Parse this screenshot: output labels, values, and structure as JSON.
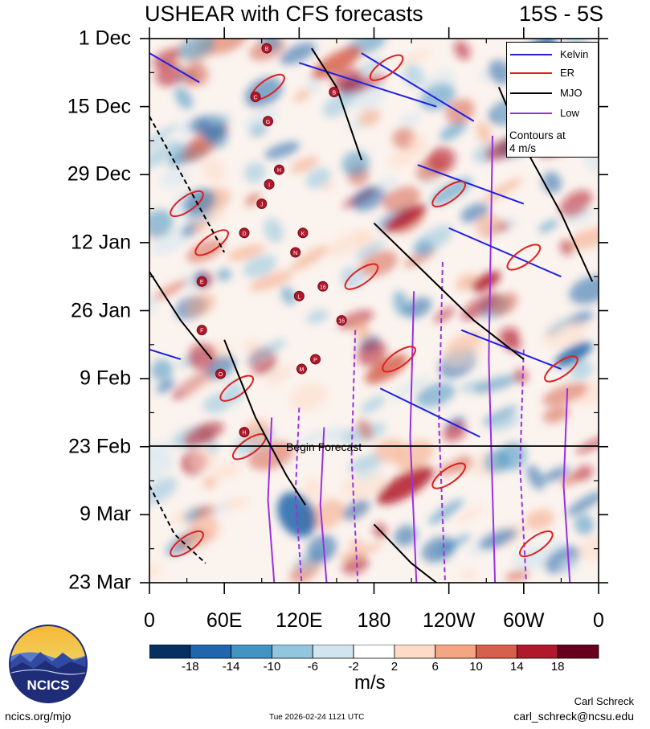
{
  "title": "USHEAR with CFS forecasts",
  "latitude_band": "15S - 5S",
  "chart_data": {
    "type": "heatmap",
    "title": "USHEAR with CFS forecasts",
    "subtitle": "15S - 5S",
    "xlabel": "",
    "ylabel": "",
    "x_ticks": [
      "0",
      "60E",
      "120E",
      "180",
      "120W",
      "60W",
      "0"
    ],
    "x_tick_values": [
      0,
      60,
      120,
      180,
      240,
      300,
      360
    ],
    "y_ticks": [
      "1 Dec",
      "15 Dec",
      "29 Dec",
      "12 Jan",
      "26 Jan",
      "9 Feb",
      "23 Feb",
      "9 Mar",
      "23 Mar"
    ],
    "y_tick_values": [
      0,
      14,
      28,
      42,
      56,
      70,
      84,
      98,
      112
    ],
    "xlim": [
      0,
      360
    ],
    "ylim_days": [
      0,
      112
    ],
    "colorbar": {
      "units": "m/s",
      "labels": [
        "-18",
        "-14",
        "-10",
        "-6",
        "-2",
        "2",
        "6",
        "10",
        "14",
        "18"
      ],
      "levels": [
        -18,
        -14,
        -10,
        -6,
        -2,
        2,
        6,
        10,
        14,
        18
      ],
      "colors": [
        "#053061",
        "#2166ac",
        "#4393c3",
        "#92c5de",
        "#d1e5f0",
        "#ffffff",
        "#fddbc7",
        "#f4a582",
        "#d6604d",
        "#b2182b",
        "#67001f"
      ]
    },
    "forecast_start_label": "Begin Forecast",
    "forecast_start_day": 84,
    "legend": {
      "position": "top-right",
      "entries": [
        {
          "name": "Kelvin",
          "color": "#1f1fe0"
        },
        {
          "name": "ER",
          "color": "#e01f1f"
        },
        {
          "name": "MJO",
          "color": "#000000"
        },
        {
          "name": "Low",
          "color": "#9b30e0"
        }
      ],
      "note": "Contours at\n4 m/s"
    },
    "storm_markers": [
      {
        "label": "B",
        "lon": 94,
        "day": 2
      },
      {
        "label": "B",
        "lon": 148,
        "day": 11
      },
      {
        "label": "C",
        "lon": 85,
        "day": 12
      },
      {
        "label": "G",
        "lon": 95,
        "day": 17
      },
      {
        "label": "H",
        "lon": 104,
        "day": 27
      },
      {
        "label": "I",
        "lon": 96,
        "day": 30
      },
      {
        "label": "J",
        "lon": 90,
        "day": 34
      },
      {
        "label": "D",
        "lon": 76,
        "day": 40
      },
      {
        "label": "K",
        "lon": 123,
        "day": 40
      },
      {
        "label": "N",
        "lon": 117,
        "day": 44
      },
      {
        "label": "E",
        "lon": 42,
        "day": 50
      },
      {
        "label": "16",
        "lon": 139,
        "day": 51
      },
      {
        "label": "L",
        "lon": 120,
        "day": 53
      },
      {
        "label": "16",
        "lon": 154,
        "day": 58
      },
      {
        "label": "F",
        "lon": 42,
        "day": 60
      },
      {
        "label": "P",
        "lon": 133,
        "day": 66
      },
      {
        "label": "M",
        "lon": 122,
        "day": 68
      },
      {
        "label": "O",
        "lon": 57,
        "day": 69
      },
      {
        "label": "H",
        "lon": 76,
        "day": 81
      }
    ]
  },
  "colorbar_units": "m/s",
  "footer": {
    "logo_text": "NCICS",
    "site": "ncics.org/mjo",
    "timestamp": "Tue 2026-02-24 1121 UTC",
    "author": "Carl Schreck",
    "email": "carl_schreck@ncsu.edu"
  }
}
